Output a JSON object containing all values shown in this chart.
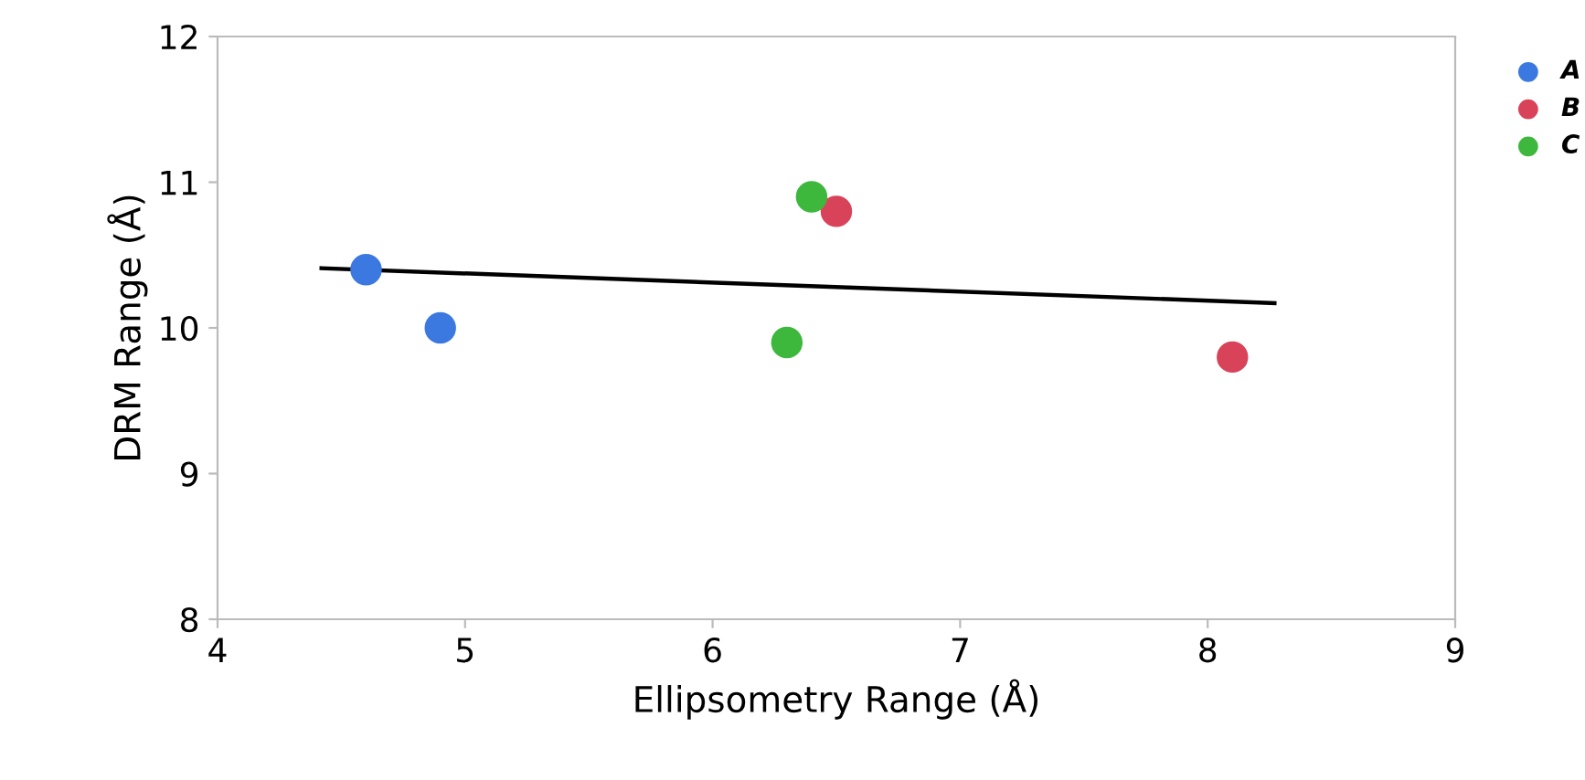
{
  "chart_data": {
    "type": "scatter",
    "xlabel": "Ellipsometry Range (Å)",
    "ylabel": "DRM Range (Å)",
    "xlim": [
      4,
      9
    ],
    "xticks": [
      4,
      5,
      6,
      7,
      8,
      9
    ],
    "ylim": [
      8,
      12
    ],
    "yticks": [
      8,
      9,
      10,
      11,
      12
    ],
    "grid": false,
    "legend": "top right",
    "series": [
      {
        "name": "A",
        "marker": "circle",
        "color": "#3b78e0",
        "x": [
          4.6,
          4.9
        ],
        "values": [
          10.4,
          10.0
        ]
      },
      {
        "name": "B",
        "marker": "circle",
        "color": "#d9435a",
        "x": [
          6.5,
          8.1
        ],
        "values": [
          10.8,
          9.8
        ]
      },
      {
        "name": "C",
        "marker": "circle",
        "color": "#3db83d",
        "x": [
          6.4,
          6.3
        ],
        "values": [
          10.9,
          9.9
        ]
      },
      {
        "type": "line",
        "color": "#000000",
        "x": [
          4.42,
          8.27
        ],
        "values": [
          10.41,
          10.17
        ]
      }
    ]
  }
}
